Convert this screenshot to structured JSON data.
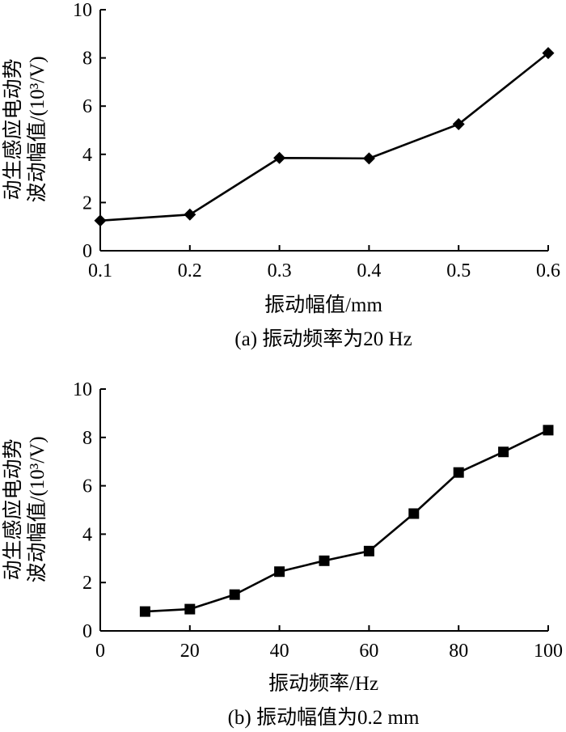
{
  "chart_data": [
    {
      "type": "line",
      "marker": "diamond",
      "x": [
        0.1,
        0.2,
        0.3,
        0.4,
        0.5,
        0.6
      ],
      "values": [
        1.25,
        1.5,
        3.85,
        3.83,
        5.25,
        8.2
      ],
      "xlim": [
        0.1,
        0.6
      ],
      "ylim": [
        0,
        10
      ],
      "xticks": [
        "0.1",
        "0.2",
        "0.3",
        "0.4",
        "0.5",
        "0.6"
      ],
      "yticks": [
        "0",
        "2",
        "4",
        "6",
        "8",
        "10"
      ],
      "xlabel": "振动幅值/mm",
      "ylabel_line1": "动生感应电动势",
      "ylabel_line2": "波动幅值/(10³/V)",
      "caption": "(a)  振动频率为20 Hz"
    },
    {
      "type": "line",
      "marker": "square",
      "x": [
        10,
        20,
        30,
        40,
        50,
        60,
        70,
        80,
        90,
        100
      ],
      "values": [
        0.8,
        0.9,
        1.5,
        2.45,
        2.9,
        3.3,
        4.85,
        6.55,
        7.4,
        8.3
      ],
      "xlim": [
        0,
        100
      ],
      "ylim": [
        0,
        10
      ],
      "xticks": [
        "0",
        "20",
        "40",
        "60",
        "80",
        "100"
      ],
      "yticks": [
        "0",
        "2",
        "4",
        "6",
        "8",
        "10"
      ],
      "xlabel": "振动频率/Hz",
      "ylabel_line1": "动生感应电动势",
      "ylabel_line2": "波动幅值/(10³/V)",
      "caption": "(b) 振动幅值为0.2 mm"
    }
  ]
}
